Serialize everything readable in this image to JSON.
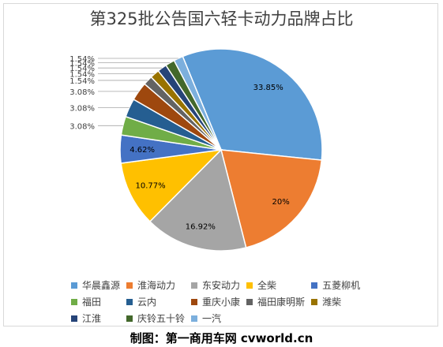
{
  "chart_data": {
    "type": "pie",
    "title": "第325批公告国六轻卡动力品牌占比",
    "slices": [
      {
        "name": "华晨鑫源",
        "value": 33.85,
        "label": "33.85%",
        "color": "#5b9bd5"
      },
      {
        "name": "淮海动力",
        "value": 20,
        "label": "20%",
        "color": "#ed7d31"
      },
      {
        "name": "东安动力",
        "value": 16.92,
        "label": "16.92%",
        "color": "#a5a5a5"
      },
      {
        "name": "全柴",
        "value": 10.77,
        "label": "10.77%",
        "color": "#ffc000"
      },
      {
        "name": "五菱柳机",
        "value": 4.62,
        "label": "4.62%",
        "color": "#4472c4"
      },
      {
        "name": "福田",
        "value": 3.08,
        "label": "3.08%",
        "color": "#70ad47"
      },
      {
        "name": "云内",
        "value": 3.08,
        "label": "3.08%",
        "color": "#255e91"
      },
      {
        "name": "重庆小康",
        "value": 3.08,
        "label": "3.08%",
        "color": "#9e480e"
      },
      {
        "name": "福田康明斯",
        "value": 1.54,
        "label": "1.54%",
        "color": "#636363"
      },
      {
        "name": "潍柴",
        "value": 1.54,
        "label": "1.54%",
        "color": "#997300"
      },
      {
        "name": "江淮",
        "value": 1.54,
        "label": "1.54%",
        "color": "#264478"
      },
      {
        "name": "庆铃五十铃",
        "value": 1.54,
        "label": "1.54%",
        "color": "#43682b"
      },
      {
        "name": "一汽",
        "value": 1.54,
        "label": "1.54%",
        "color": "#7cafdd"
      }
    ],
    "legend_position": "bottom"
  },
  "footer": "制图：第一商用车网 cvworld.cn"
}
